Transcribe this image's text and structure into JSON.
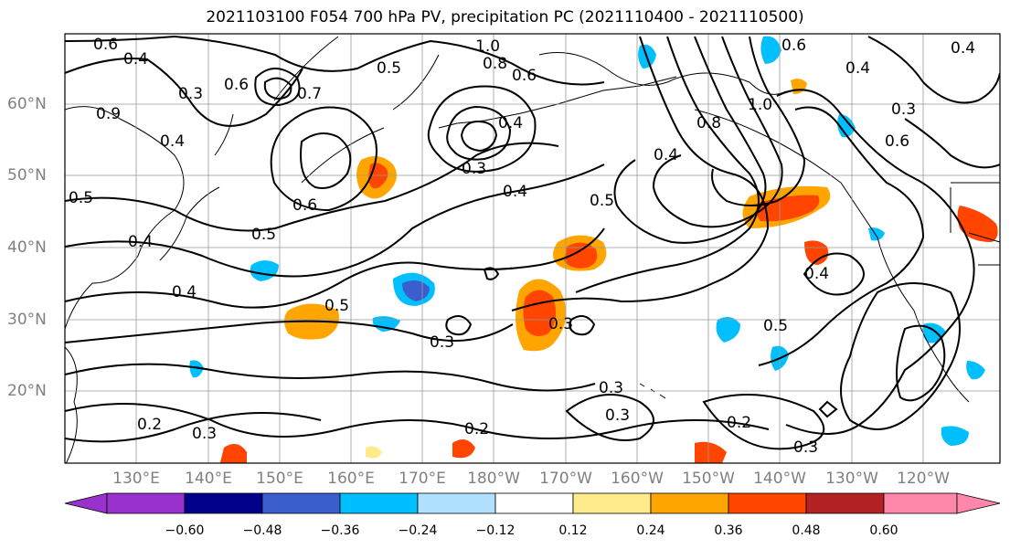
{
  "title": "2021103100 F054 700 hPa PV, precipitation PC (2021110400 - 2021110500)",
  "lon_labels": [
    "130°E",
    "140°E",
    "150°E",
    "160°E",
    "170°E",
    "180°W",
    "170°W",
    "160°W",
    "150°W",
    "140°W",
    "130°W",
    "120°W"
  ],
  "lat_labels": [
    "60°N",
    "50°N",
    "40°N",
    "30°N",
    "20°N"
  ],
  "colorbar": {
    "ticks": [
      "−0.60",
      "−0.48",
      "−0.36",
      "−0.24",
      "−0.12",
      "0.12",
      "0.24",
      "0.36",
      "0.48",
      "0.60"
    ],
    "colors": [
      "#9932cc",
      "#00008b",
      "#3a5fcd",
      "#00bfff",
      "#b0e2ff",
      "#ffffff",
      "#ffea8c",
      "#ffa500",
      "#ff4500",
      "#b22222",
      "#ff88aa"
    ]
  },
  "contour_labels": [
    {
      "text": "0.6"
    },
    {
      "text": "0.4"
    },
    {
      "text": "0.3"
    },
    {
      "text": "0.6"
    },
    {
      "text": "0.7"
    },
    {
      "text": "0.5"
    },
    {
      "text": "1.0"
    },
    {
      "text": "0.8"
    },
    {
      "text": "0.6"
    },
    {
      "text": "0.9"
    },
    {
      "text": "0.4"
    },
    {
      "text": "0.3"
    },
    {
      "text": "0.4"
    },
    {
      "text": "0.5"
    },
    {
      "text": "0.6"
    },
    {
      "text": "0.4"
    },
    {
      "text": "0.4"
    },
    {
      "text": "0.5"
    },
    {
      "text": "0.4"
    },
    {
      "text": "0.5"
    },
    {
      "text": "0.3"
    },
    {
      "text": "0.3"
    },
    {
      "text": "0.3"
    },
    {
      "text": "0.2"
    },
    {
      "text": "0.2"
    },
    {
      "text": "0.3"
    },
    {
      "text": "0.5"
    },
    {
      "text": "0.4"
    },
    {
      "text": "0.4"
    },
    {
      "text": "0.6"
    },
    {
      "text": "0.5"
    },
    {
      "text": "0.3"
    },
    {
      "text": "0.8"
    },
    {
      "text": "1.0"
    },
    {
      "text": "0.4"
    },
    {
      "text": "0.2"
    },
    {
      "text": "0.3"
    },
    {
      "text": "0.6"
    },
    {
      "text": "0.4"
    },
    {
      "text": "0.3"
    }
  ]
}
